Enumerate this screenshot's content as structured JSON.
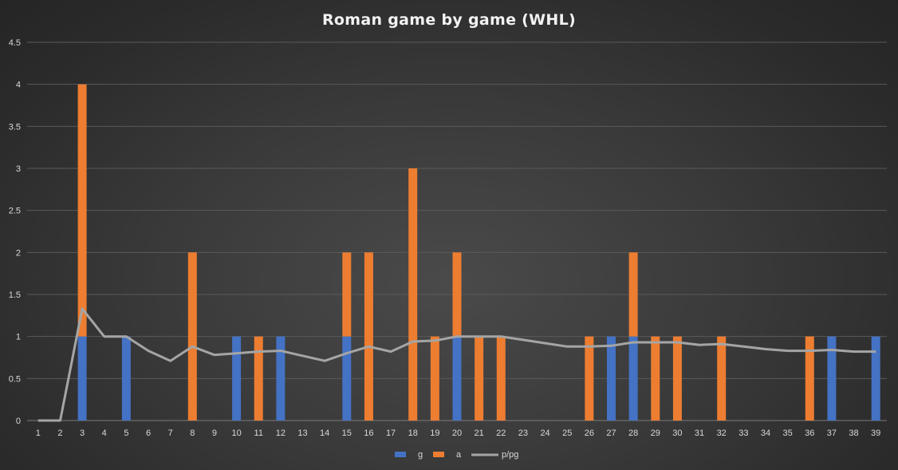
{
  "chart_data": {
    "type": "bar",
    "stacked": true,
    "title": "Roman game by game (WHL)",
    "categories": [
      "1",
      "2",
      "3",
      "4",
      "5",
      "6",
      "7",
      "8",
      "9",
      "10",
      "11",
      "12",
      "13",
      "14",
      "15",
      "16",
      "17",
      "18",
      "19",
      "20",
      "21",
      "22",
      "23",
      "24",
      "25",
      "26",
      "27",
      "28",
      "29",
      "30",
      "31",
      "32",
      "33",
      "34",
      "35",
      "36",
      "37",
      "38",
      "39"
    ],
    "series": [
      {
        "name": "g",
        "type": "bar",
        "color": "#4472c4",
        "values": [
          0,
          0,
          1,
          0,
          1,
          0,
          0,
          0,
          0,
          1,
          0,
          1,
          0,
          0,
          1,
          0,
          0,
          0,
          0,
          1,
          0,
          0,
          0,
          0,
          0,
          0,
          1,
          1,
          0,
          0,
          0,
          0,
          0,
          0,
          0,
          0,
          1,
          0,
          1
        ]
      },
      {
        "name": "a",
        "type": "bar",
        "color": "#ed7d31",
        "values": [
          0,
          0,
          3,
          0,
          0,
          0,
          0,
          2,
          0,
          0,
          1,
          0,
          0,
          0,
          1,
          2,
          0,
          3,
          1,
          1,
          1,
          1,
          0,
          0,
          0,
          1,
          0,
          1,
          1,
          1,
          0,
          1,
          0,
          0,
          0,
          1,
          0,
          0,
          0
        ]
      },
      {
        "name": "p/pg",
        "type": "line",
        "color": "#a5a5a5",
        "values": [
          0,
          0,
          1.33,
          1,
          1,
          0.83,
          0.71,
          0.88,
          0.78,
          0.8,
          0.82,
          0.83,
          0.77,
          0.71,
          0.8,
          0.88,
          0.82,
          0.94,
          0.95,
          1,
          1,
          1,
          0.96,
          0.92,
          0.88,
          0.88,
          0.89,
          0.93,
          0.93,
          0.93,
          0.9,
          0.91,
          0.88,
          0.85,
          0.83,
          0.83,
          0.84,
          0.82,
          0.82
        ]
      }
    ],
    "ylim": [
      0,
      4.5
    ],
    "yticks": [
      "0",
      "0.5",
      "1",
      "1.5",
      "2",
      "2.5",
      "3",
      "3.5",
      "4",
      "4.5"
    ],
    "grid": true,
    "legend": "bottom"
  }
}
